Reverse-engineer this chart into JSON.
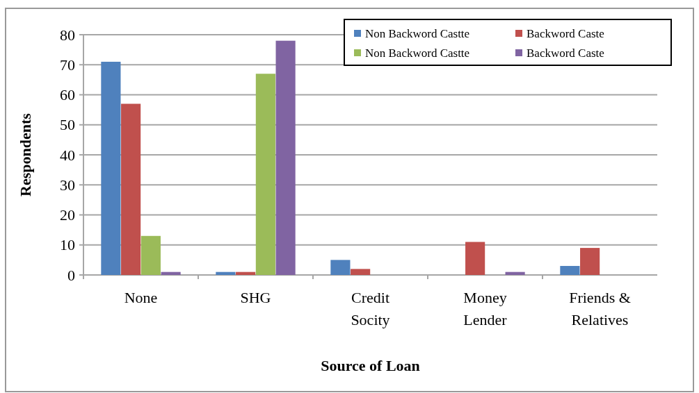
{
  "chart_data": {
    "type": "bar",
    "xlabel": "Source of Loan",
    "ylabel": "Respondents",
    "categories": [
      "None",
      "SHG",
      "Credit Socity",
      "Money Lender",
      "Friends & Relatives"
    ],
    "series": [
      {
        "name": "Non Backword Castte",
        "color": "#4f81bd",
        "values": [
          71,
          1,
          5,
          0,
          3
        ]
      },
      {
        "name": "Backword Caste",
        "color": "#c0504d",
        "values": [
          57,
          1,
          2,
          11,
          9
        ]
      },
      {
        "name": "Non Backword Castte",
        "color": "#9bbb59",
        "values": [
          13,
          67,
          0,
          0,
          0
        ]
      },
      {
        "name": "Backword Caste",
        "color": "#8064a2",
        "values": [
          1,
          78,
          0,
          1,
          0
        ]
      }
    ],
    "ylim": [
      0,
      80
    ],
    "yticks": [
      0,
      10,
      20,
      30,
      40,
      50,
      60,
      70,
      80
    ],
    "grid": "y",
    "legend": "top right"
  }
}
